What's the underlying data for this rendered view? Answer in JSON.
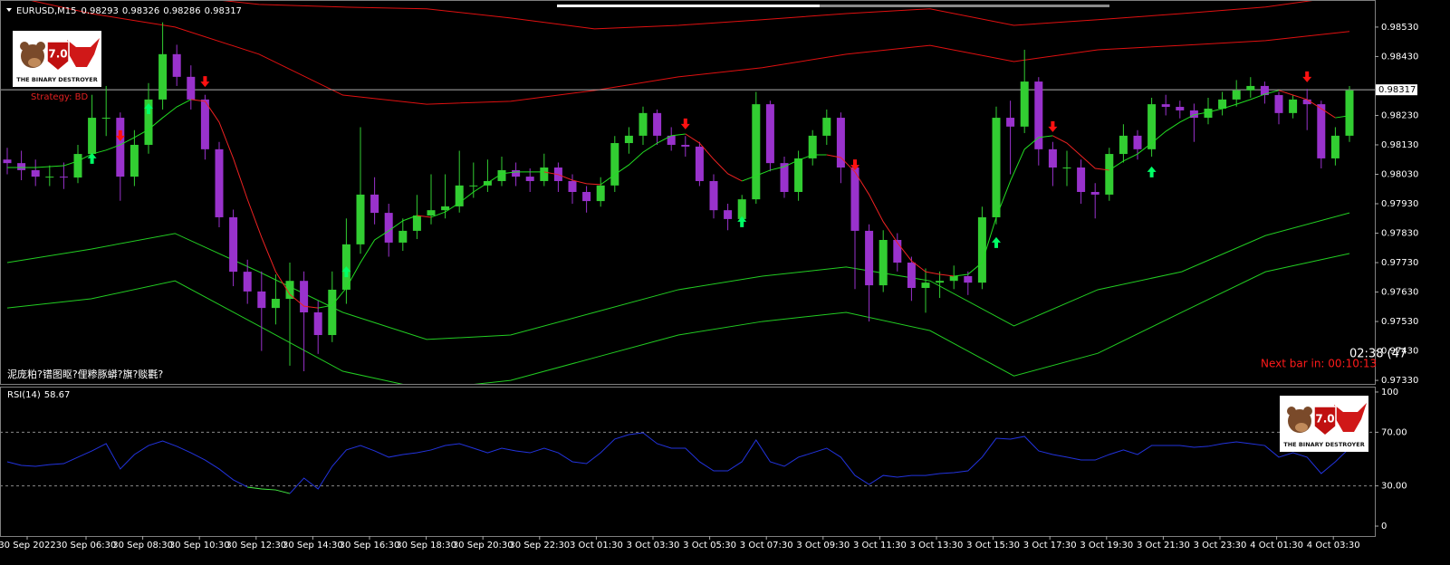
{
  "window": {
    "symbol": "EURUSD,M15",
    "ohlc": [
      0.98293,
      0.98326,
      0.98286,
      0.98317
    ],
    "strategy": "Strategy: BD",
    "timer": "02:38 (47",
    "next_bar": "Next bar in: 00:10:13",
    "status_text": "泥庞粕?镨图眍?俚糁豚蟒?旗?赕氍?",
    "logo": {
      "version": "7.0",
      "name": "THE BINARY DESTROYER"
    }
  },
  "chart_data": [
    {
      "type": "candlestick",
      "up_color": "#32cd32",
      "down_color": "#9932cc",
      "ylim": [
        0.97318,
        0.98622
      ],
      "yticks": [
        {
          "value": 0.9853,
          "label": "0.98530"
        },
        {
          "value": 0.9843,
          "label": "0.98430"
        },
        {
          "value": 0.9823,
          "label": "0.98230"
        },
        {
          "value": 0.9813,
          "label": "0.98130"
        },
        {
          "value": 0.9803,
          "label": "0.98030"
        },
        {
          "value": 0.9793,
          "label": "0.97930"
        },
        {
          "value": 0.9783,
          "label": "0.97830"
        },
        {
          "value": 0.9773,
          "label": "0.97730"
        },
        {
          "value": 0.9763,
          "label": "0.97630"
        },
        {
          "value": 0.9753,
          "label": "0.97530"
        },
        {
          "value": 0.9743,
          "label": "0.97430"
        },
        {
          "value": 0.9733,
          "label": "0.97330"
        }
      ],
      "current_price": {
        "value": 0.98317,
        "label": "0.98317"
      },
      "x_labels": [
        "30 Sep 2022",
        "30 Sep 06:30",
        "30 Sep 08:30",
        "30 Sep 10:30",
        "30 Sep 12:30",
        "30 Sep 14:30",
        "30 Sep 16:30",
        "30 Sep 18:30",
        "30 Sep 20:30",
        "30 Sep 22:30",
        "3 Oct 01:30",
        "3 Oct 03:30",
        "3 Oct 05:30",
        "3 Oct 07:30",
        "3 Oct 09:30",
        "3 Oct 11:30",
        "3 Oct 13:30",
        "3 Oct 15:30",
        "3 Oct 17:30",
        "3 Oct 19:30",
        "3 Oct 21:30",
        "3 Oct 23:30",
        "4 Oct 01:30",
        "4 Oct 03:30"
      ],
      "ohlc": [
        [
          0.9808,
          0.9812,
          0.9803,
          0.98068
        ],
        [
          0.98068,
          0.9811,
          0.9801,
          0.98044
        ],
        [
          0.98044,
          0.9808,
          0.9799,
          0.98022
        ],
        [
          0.98022,
          0.9806,
          0.9799,
          0.98022
        ],
        [
          0.98022,
          0.9807,
          0.9798,
          0.98019
        ],
        [
          0.98019,
          0.9813,
          0.98,
          0.98099
        ],
        [
          0.98099,
          0.983,
          0.9808,
          0.98222
        ],
        [
          0.98222,
          0.9833,
          0.9816,
          0.98222
        ],
        [
          0.98222,
          0.9824,
          0.9794,
          0.98022
        ],
        [
          0.98022,
          0.9818,
          0.9799,
          0.9813
        ],
        [
          0.9813,
          0.9834,
          0.981,
          0.98284
        ],
        [
          0.98284,
          0.98546,
          0.9825,
          0.98438
        ],
        [
          0.98438,
          0.9847,
          0.9833,
          0.98361
        ],
        [
          0.98361,
          0.984,
          0.9825,
          0.98284
        ],
        [
          0.98284,
          0.983,
          0.9808,
          0.98115
        ],
        [
          0.98115,
          0.9814,
          0.9785,
          0.97884
        ],
        [
          0.97884,
          0.9791,
          0.9765,
          0.97699
        ],
        [
          0.97699,
          0.9774,
          0.9759,
          0.97632
        ],
        [
          0.97632,
          0.977,
          0.9743,
          0.97576
        ],
        [
          0.97576,
          0.9769,
          0.9752,
          0.97607
        ],
        [
          0.97607,
          0.9773,
          0.9738,
          0.97668
        ],
        [
          0.97668,
          0.977,
          0.97361,
          0.97561
        ],
        [
          0.97561,
          0.976,
          0.9742,
          0.97484
        ],
        [
          0.97484,
          0.977,
          0.9746,
          0.97638
        ],
        [
          0.97638,
          0.9788,
          0.9759,
          0.97792
        ],
        [
          0.97792,
          0.9819,
          0.9776,
          0.97961
        ],
        [
          0.97961,
          0.9802,
          0.9786,
          0.97899
        ],
        [
          0.97899,
          0.9793,
          0.9775,
          0.97798
        ],
        [
          0.97798,
          0.9788,
          0.9777,
          0.97838
        ],
        [
          0.97838,
          0.9796,
          0.9781,
          0.9789
        ],
        [
          0.9789,
          0.9803,
          0.9786,
          0.97908
        ],
        [
          0.97908,
          0.9803,
          0.9788,
          0.97921
        ],
        [
          0.97921,
          0.9811,
          0.979,
          0.97992
        ],
        [
          0.97992,
          0.9807,
          0.9795,
          0.97992
        ],
        [
          0.97992,
          0.9808,
          0.9797,
          0.98007
        ],
        [
          0.98007,
          0.9809,
          0.9799,
          0.98044
        ],
        [
          0.98044,
          0.9807,
          0.9799,
          0.98022
        ],
        [
          0.98022,
          0.9805,
          0.9797,
          0.98007
        ],
        [
          0.98007,
          0.981,
          0.9799,
          0.98053
        ],
        [
          0.98053,
          0.9807,
          0.9797,
          0.98007
        ],
        [
          0.98007,
          0.9803,
          0.9793,
          0.9797
        ],
        [
          0.9797,
          0.9799,
          0.979,
          0.97939
        ],
        [
          0.97939,
          0.9802,
          0.9792,
          0.97992
        ],
        [
          0.97992,
          0.9816,
          0.9797,
          0.98136
        ],
        [
          0.98136,
          0.9819,
          0.981,
          0.98161
        ],
        [
          0.98161,
          0.9826,
          0.9813,
          0.98238
        ],
        [
          0.98238,
          0.9825,
          0.9813,
          0.98161
        ],
        [
          0.98161,
          0.9819,
          0.9811,
          0.9813
        ],
        [
          0.9813,
          0.9816,
          0.9809,
          0.98124
        ],
        [
          0.98124,
          0.9814,
          0.9799,
          0.98007
        ],
        [
          0.98007,
          0.9803,
          0.9788,
          0.97908
        ],
        [
          0.97908,
          0.9793,
          0.9784,
          0.97878
        ],
        [
          0.97878,
          0.9796,
          0.9786,
          0.97945
        ],
        [
          0.97945,
          0.9831,
          0.9793,
          0.98268
        ],
        [
          0.98268,
          0.9828,
          0.9804,
          0.98068
        ],
        [
          0.98068,
          0.9809,
          0.9795,
          0.9797
        ],
        [
          0.9797,
          0.9811,
          0.9794,
          0.98084
        ],
        [
          0.98084,
          0.9818,
          0.9806,
          0.98161
        ],
        [
          0.98161,
          0.9825,
          0.9813,
          0.98222
        ],
        [
          0.98222,
          0.9824,
          0.98,
          0.98053
        ],
        [
          0.98053,
          0.9807,
          0.9764,
          0.97838
        ],
        [
          0.97838,
          0.9786,
          0.9753,
          0.97653
        ],
        [
          0.97653,
          0.9784,
          0.9763,
          0.97807
        ],
        [
          0.97807,
          0.9783,
          0.977,
          0.9773
        ],
        [
          0.9773,
          0.9775,
          0.976,
          0.97644
        ],
        [
          0.97644,
          0.9771,
          0.9756,
          0.97662
        ],
        [
          0.97662,
          0.977,
          0.9761,
          0.97668
        ],
        [
          0.97668,
          0.9772,
          0.9764,
          0.97684
        ],
        [
          0.97684,
          0.977,
          0.9762,
          0.97662
        ],
        [
          0.97662,
          0.9792,
          0.9764,
          0.97884
        ],
        [
          0.97884,
          0.9826,
          0.9786,
          0.98222
        ],
        [
          0.98222,
          0.9828,
          0.9803,
          0.98192
        ],
        [
          0.98192,
          0.98453,
          0.9817,
          0.98345
        ],
        [
          0.98345,
          0.9836,
          0.9806,
          0.98115
        ],
        [
          0.98115,
          0.9814,
          0.9799,
          0.98053
        ],
        [
          0.98053,
          0.9811,
          0.9799,
          0.98053
        ],
        [
          0.98053,
          0.9808,
          0.9793,
          0.9797
        ],
        [
          0.9797,
          0.98,
          0.9788,
          0.97961
        ],
        [
          0.97961,
          0.9812,
          0.9794,
          0.98099
        ],
        [
          0.98099,
          0.982,
          0.9807,
          0.98161
        ],
        [
          0.98161,
          0.9818,
          0.9808,
          0.98115
        ],
        [
          0.98115,
          0.9829,
          0.9809,
          0.98268
        ],
        [
          0.98268,
          0.983,
          0.9823,
          0.98259
        ],
        [
          0.98259,
          0.9828,
          0.9822,
          0.98247
        ],
        [
          0.98247,
          0.9827,
          0.9814,
          0.98222
        ],
        [
          0.98222,
          0.9829,
          0.982,
          0.98253
        ],
        [
          0.98253,
          0.9831,
          0.9823,
          0.98284
        ],
        [
          0.98284,
          0.9835,
          0.9826,
          0.98315
        ],
        [
          0.98315,
          0.9836,
          0.9829,
          0.9833
        ],
        [
          0.9833,
          0.98345,
          0.9827,
          0.98299
        ],
        [
          0.98299,
          0.9831,
          0.982,
          0.98238
        ],
        [
          0.98238,
          0.983,
          0.9822,
          0.98284
        ],
        [
          0.98284,
          0.9832,
          0.9818,
          0.98268
        ],
        [
          0.98268,
          0.9828,
          0.9805,
          0.98084
        ],
        [
          0.98084,
          0.9819,
          0.9806,
          0.98161
        ],
        [
          0.98161,
          0.9833,
          0.9814,
          0.98315
        ]
      ],
      "ma": {
        "up_color": "#22dd22",
        "down_color": "#ee2222",
        "values": [
          0.98053,
          0.98053,
          0.98053,
          0.98056,
          0.98059,
          0.98075,
          0.98099,
          0.98112,
          0.9813,
          0.98155,
          0.98182,
          0.98222,
          0.98259,
          0.98284,
          0.98278,
          0.98207,
          0.98084,
          0.97945,
          0.97816,
          0.97699,
          0.97622,
          0.97582,
          0.97576,
          0.97585,
          0.97644,
          0.9773,
          0.97807,
          0.97838,
          0.97872,
          0.9789,
          0.97884,
          0.97902,
          0.97933,
          0.9797,
          0.98001,
          0.98032,
          0.98038,
          0.98038,
          0.98038,
          0.98029,
          0.9801,
          0.97998,
          0.97995,
          0.98029,
          0.98062,
          0.98105,
          0.98136,
          0.98161,
          0.98167,
          0.98136,
          0.98081,
          0.98032,
          0.98007,
          0.98025,
          0.98044,
          0.98056,
          0.98078,
          0.98096,
          0.98096,
          0.98087,
          0.98038,
          0.97961,
          0.97869,
          0.97798,
          0.97736,
          0.97699,
          0.9769,
          0.97684,
          0.9769,
          0.9773,
          0.97884,
          0.98007,
          0.98115,
          0.98155,
          0.98161,
          0.98136,
          0.98093,
          0.9805,
          0.98044,
          0.98075,
          0.98099,
          0.98136,
          0.98176,
          0.98207,
          0.98232,
          0.98241,
          0.98253,
          0.98268,
          0.98284,
          0.98302,
          0.98315,
          0.98299,
          0.98284,
          0.98253,
          0.98222,
          0.98229
        ]
      },
      "bands": [
        {
          "color": "#e01010",
          "values": [
            0.98715,
            0.98684,
            0.98638,
            0.98607,
            0.98598,
            0.98592,
            0.98561,
            0.98524,
            0.98536,
            0.98555,
            0.98576,
            0.98592,
            0.98536,
            0.98555,
            0.98576,
            0.98598,
            0.98638
          ]
        },
        {
          "color": "#e01010",
          "values": [
            0.98638,
            0.98576,
            0.9853,
            0.98438,
            0.98299,
            0.98268,
            0.98278,
            0.98315,
            0.98361,
            0.98392,
            0.98438,
            0.98468,
            0.98413,
            0.98453,
            0.98468,
            0.98484,
            0.98515
          ]
        },
        {
          "color": "#22cc22",
          "values": [
            0.9773,
            0.97776,
            0.97829,
            0.97699,
            0.97561,
            0.97469,
            0.97484,
            0.97561,
            0.97638,
            0.97684,
            0.97715,
            0.97668,
            0.97515,
            0.97638,
            0.97699,
            0.97822,
            0.97899
          ]
        },
        {
          "color": "#22cc22",
          "values": [
            0.97576,
            0.97607,
            0.97668,
            0.97515,
            0.97361,
            0.97299,
            0.9733,
            0.97407,
            0.97484,
            0.9753,
            0.97561,
            0.97499,
            0.97345,
            0.97422,
            0.97561,
            0.97699,
            0.97761
          ]
        }
      ],
      "buy_signals": {
        "color": "#00ff66",
        "values": [
          null,
          null,
          null,
          null,
          null,
          null,
          0.98084,
          null,
          null,
          null,
          0.98253,
          null,
          null,
          null,
          null,
          null,
          null,
          null,
          null,
          null,
          null,
          null,
          null,
          null,
          0.97699,
          null,
          null,
          null,
          null,
          null,
          null,
          null,
          null,
          null,
          null,
          null,
          null,
          null,
          null,
          null,
          null,
          null,
          null,
          null,
          null,
          null,
          null,
          null,
          null,
          null,
          null,
          null,
          0.97869,
          null,
          null,
          null,
          null,
          null,
          null,
          null,
          null,
          null,
          null,
          null,
          null,
          null,
          null,
          null,
          null,
          null,
          0.97798,
          null,
          null,
          null,
          null,
          null,
          null,
          null,
          null,
          null,
          null,
          0.98038,
          null,
          null,
          null,
          null,
          null,
          null,
          null,
          null,
          null,
          null,
          null,
          null,
          null,
          null
        ]
      },
      "sell_signals": {
        "color": "#ff1111",
        "values": [
          null,
          null,
          null,
          null,
          null,
          null,
          null,
          null,
          0.98161,
          null,
          null,
          null,
          null,
          null,
          0.98345,
          null,
          null,
          null,
          null,
          null,
          null,
          null,
          null,
          null,
          null,
          null,
          null,
          null,
          null,
          null,
          null,
          null,
          null,
          null,
          null,
          null,
          null,
          null,
          null,
          null,
          null,
          null,
          null,
          null,
          null,
          null,
          null,
          null,
          0.98201,
          null,
          null,
          null,
          null,
          null,
          null,
          null,
          null,
          null,
          null,
          null,
          0.98062,
          null,
          null,
          null,
          null,
          null,
          null,
          null,
          null,
          null,
          null,
          null,
          null,
          null,
          0.98192,
          null,
          null,
          null,
          null,
          null,
          null,
          null,
          null,
          null,
          null,
          null,
          null,
          null,
          null,
          null,
          null,
          null,
          0.98361,
          null,
          null,
          null
        ]
      }
    },
    {
      "type": "line",
      "title": "RSI(14)",
      "current": 58.67,
      "color": "#2233dd",
      "oversold_color": "#44ee44",
      "ylim": [
        -7.4,
        104.7
      ],
      "yticks": [
        100,
        {
          "value": 70,
          "label": "70.00"
        },
        {
          "value": 30,
          "label": "30.00"
        },
        0
      ],
      "levels": [
        70,
        30
      ],
      "values": [
        48.0,
        45.3,
        44.6,
        45.9,
        46.6,
        51.4,
        56.1,
        61.5,
        42.6,
        53.4,
        60.1,
        63.5,
        59.5,
        54.7,
        49.3,
        42.6,
        34.5,
        29.1,
        27.7,
        27.0,
        24.3,
        35.8,
        27.7,
        44.6,
        56.8,
        60.1,
        56.1,
        51.4,
        53.4,
        54.7,
        56.8,
        60.1,
        61.5,
        58.1,
        54.7,
        58.1,
        56.1,
        54.7,
        58.1,
        54.7,
        48.0,
        46.6,
        54.7,
        64.9,
        68.2,
        69.6,
        61.5,
        58.1,
        58.1,
        48.0,
        41.2,
        41.2,
        48.0,
        64.2,
        48.0,
        44.6,
        51.4,
        54.7,
        58.1,
        51.4,
        37.8,
        31.1,
        37.8,
        36.5,
        37.8,
        37.8,
        39.2,
        39.9,
        41.2,
        51.4,
        65.5,
        64.9,
        66.9,
        56.1,
        53.4,
        51.4,
        49.3,
        49.3,
        53.4,
        56.8,
        53.4,
        60.1,
        60.1,
        60.1,
        58.8,
        59.5,
        61.5,
        62.8,
        61.5,
        60.1,
        51.4,
        54.7,
        51.4,
        39.2,
        48.0,
        58.1
      ]
    }
  ]
}
